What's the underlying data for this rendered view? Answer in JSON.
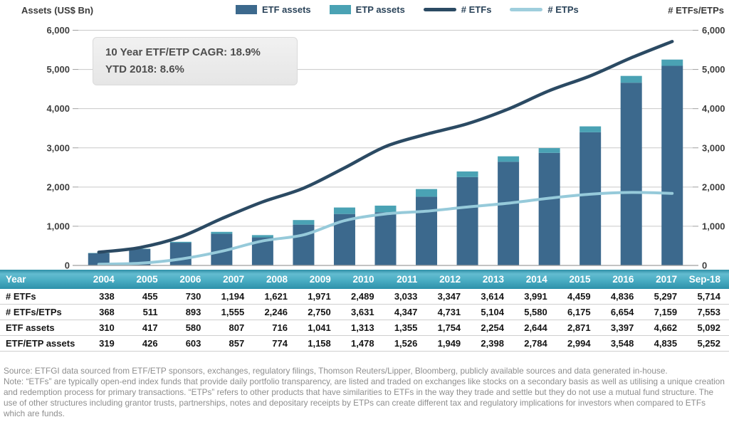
{
  "chart": {
    "left_axis_title": "Assets (US$ Bn)",
    "right_axis_title": "# ETFs/ETPs",
    "annotation": {
      "line1": "10 Year ETF/ETP CAGR: 18.9%",
      "line2": "YTD 2018: 8.6%"
    },
    "legend": [
      {
        "label": "ETF assets",
        "swatch": "square",
        "color": "#3c698d"
      },
      {
        "label": "ETP assets",
        "swatch": "square",
        "color": "#4aa2b4"
      },
      {
        "label": "# ETFs",
        "swatch": "line",
        "color": "#2b4a63"
      },
      {
        "label": "# ETPs",
        "swatch": "line",
        "color": "#9fcedd"
      }
    ]
  },
  "chart_data": {
    "type": "combo",
    "title": "",
    "categories": [
      "2004",
      "2005",
      "2006",
      "2007",
      "2008",
      "2009",
      "2010",
      "2011",
      "2012",
      "2013",
      "2014",
      "2015",
      "2016",
      "2017",
      "Sep-18"
    ],
    "series": [
      {
        "name": "ETF assets",
        "type": "bar",
        "stack": "assets",
        "axis": "left",
        "color": "#3c698d",
        "values": [
          310,
          417,
          580,
          807,
          716,
          1041,
          1313,
          1355,
          1754,
          2254,
          2644,
          2871,
          3397,
          4662,
          5092
        ]
      },
      {
        "name": "ETP assets",
        "type": "bar",
        "stack": "assets",
        "axis": "left",
        "color": "#4aa2b4",
        "values": [
          9,
          9,
          23,
          50,
          58,
          117,
          165,
          171,
          195,
          144,
          140,
          123,
          151,
          173,
          160
        ]
      },
      {
        "name": "# ETFs",
        "type": "line",
        "axis": "right",
        "color": "#2b4a63",
        "values": [
          338,
          455,
          730,
          1194,
          1621,
          1971,
          2489,
          3033,
          3347,
          3614,
          3991,
          4459,
          4836,
          5297,
          5714
        ]
      },
      {
        "name": "# ETPs",
        "type": "line",
        "axis": "right",
        "color": "#96cada",
        "values": [
          30,
          56,
          163,
          361,
          625,
          779,
          1142,
          1314,
          1384,
          1490,
          1589,
          1716,
          1818,
          1862,
          1839
        ]
      }
    ],
    "left_axis": {
      "label": "Assets (US$ Bn)",
      "range": [
        0,
        6000
      ],
      "ticks": [
        0,
        1000,
        2000,
        3000,
        4000,
        5000,
        6000
      ]
    },
    "right_axis": {
      "label": "# ETFs/ETPs",
      "range": [
        0,
        6000
      ],
      "ticks": [
        0,
        1000,
        2000,
        3000,
        4000,
        5000,
        6000
      ]
    },
    "grid": true,
    "legend_position": "top"
  },
  "table": {
    "header": [
      "Year",
      "2004",
      "2005",
      "2006",
      "2007",
      "2008",
      "2009",
      "2010",
      "2011",
      "2012",
      "2013",
      "2014",
      "2015",
      "2016",
      "2017",
      "Sep-18"
    ],
    "rows": [
      {
        "label": "# ETFs",
        "values": [
          338,
          455,
          730,
          1194,
          1621,
          1971,
          2489,
          3033,
          3347,
          3614,
          3991,
          4459,
          4836,
          5297,
          5714
        ]
      },
      {
        "label": "# ETFs/ETPs",
        "values": [
          368,
          511,
          893,
          1555,
          2246,
          2750,
          3631,
          4347,
          4731,
          5104,
          5580,
          6175,
          6654,
          7159,
          7553
        ]
      },
      {
        "label": "ETF assets",
        "values": [
          310,
          417,
          580,
          807,
          716,
          1041,
          1313,
          1355,
          1754,
          2254,
          2644,
          2871,
          3397,
          4662,
          5092
        ]
      },
      {
        "label": "ETF/ETP assets",
        "values": [
          319,
          426,
          603,
          857,
          774,
          1158,
          1478,
          1526,
          1949,
          2398,
          2784,
          2994,
          3548,
          4835,
          5252
        ]
      }
    ]
  },
  "footer": {
    "source": "Source: ETFGI data sourced from ETF/ETP sponsors, exchanges, regulatory filings, Thomson Reuters/Lipper, Bloomberg, publicly available sources and data generated in-house.",
    "note": "Note: “ETFs” are typically open-end index funds that provide daily portfolio transparency, are listed and traded on exchanges like stocks on a secondary basis as well as utilising a unique creation and redemption process for primary transactions. “ETPs” refers to other products that have similarities to ETFs in the way they trade and settle but they do not use a mutual fund structure. The use of other structures including grantor trusts, partnerships, notes and depositary receipts by ETPs can create different tax and regulatory implications for investors when compared to ETFs which are funds."
  },
  "colors": {
    "etf_bar": "#3c698d",
    "etp_bar": "#4aa2b4",
    "etf_line": "#2b4a63",
    "etp_line": "#96cada",
    "table_header_teal": "#3a9db5",
    "gridline": "#c9c9c9"
  }
}
